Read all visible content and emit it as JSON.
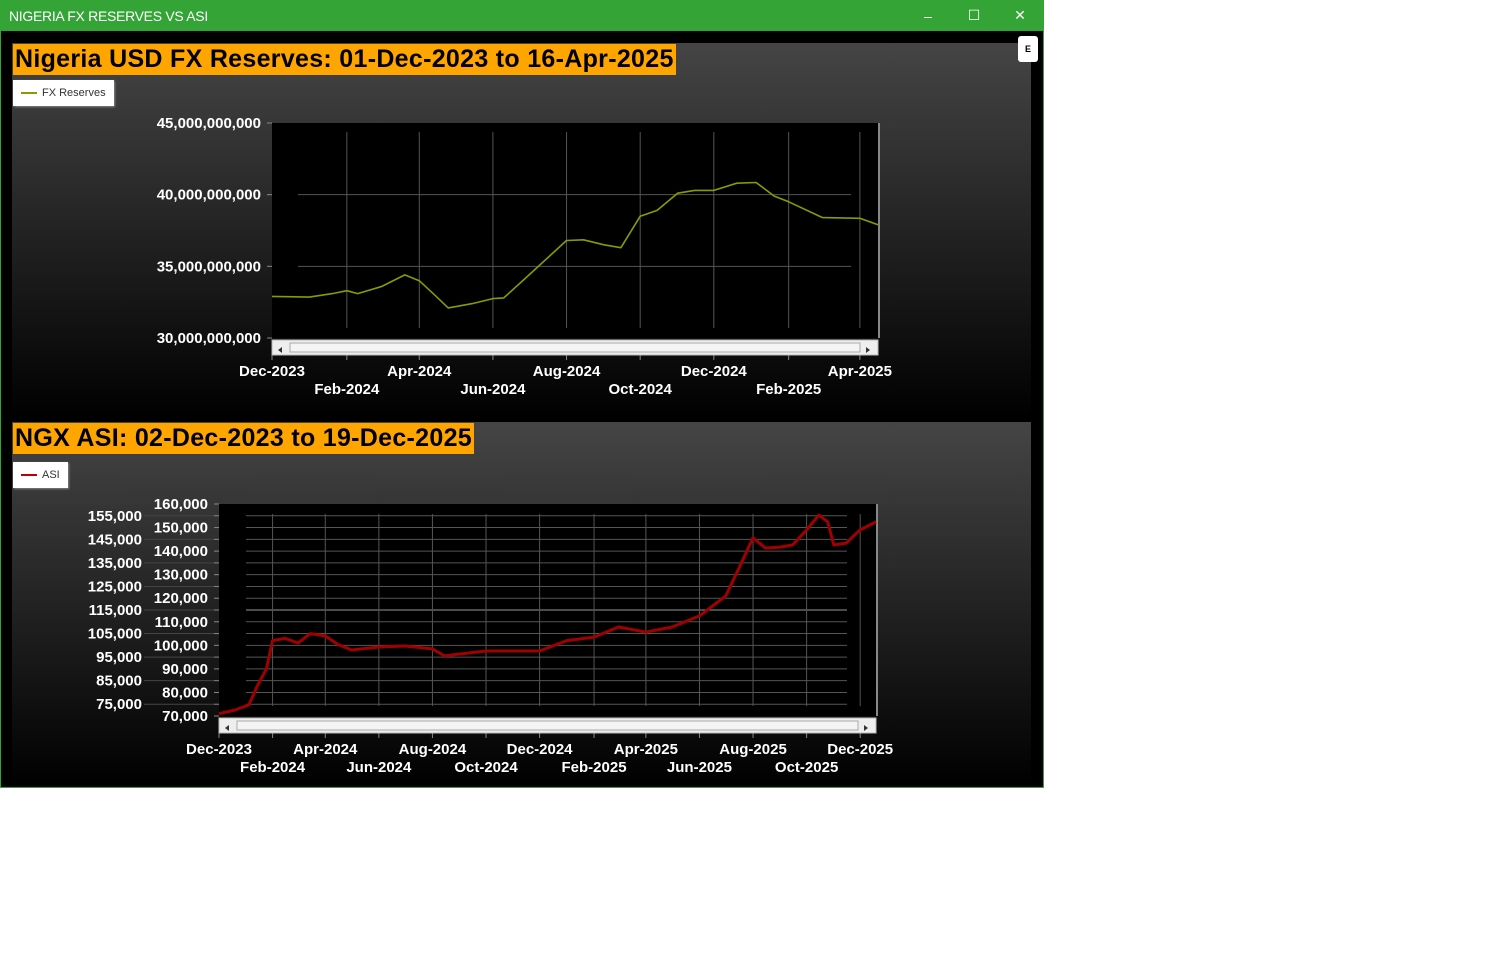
{
  "window": {
    "title": "NIGERIA FX RESERVES VS ASI",
    "minimize": "–",
    "maximize": "☐",
    "close": "✕",
    "e_button": "E"
  },
  "colors": {
    "titlebar": "#33a435",
    "title_bg": "#ffa500",
    "fx_line": "#8a9a00",
    "asi_line": "#a00000"
  },
  "chart_data": [
    {
      "type": "line",
      "title": "Nigeria USD FX Reserves: 01-Dec-2023 to 16-Apr-2025",
      "legend": "FX Reserves",
      "legend_placement": "top-left",
      "grid": true,
      "xlim": [
        "2023-12-01",
        "2025-04-16"
      ],
      "ylim": [
        30000000000,
        45000000000
      ],
      "yticks": [
        {
          "v": 30000000000,
          "label": "30,000,000,000"
        },
        {
          "v": 35000000000,
          "label": "35,000,000,000"
        },
        {
          "v": 40000000000,
          "label": "40,000,000,000"
        },
        {
          "v": 45000000000,
          "label": "45,000,000,000"
        }
      ],
      "xticks": [
        {
          "d": "2023-12-01",
          "label": "Dec-2023"
        },
        {
          "d": "2024-02-01",
          "label": "Feb-2024"
        },
        {
          "d": "2024-04-01",
          "label": "Apr-2024"
        },
        {
          "d": "2024-06-01",
          "label": "Jun-2024"
        },
        {
          "d": "2024-08-01",
          "label": "Aug-2024"
        },
        {
          "d": "2024-10-01",
          "label": "Oct-2024"
        },
        {
          "d": "2024-12-01",
          "label": "Dec-2024"
        },
        {
          "d": "2025-02-01",
          "label": "Feb-2025"
        },
        {
          "d": "2025-04-01",
          "label": "Apr-2025"
        }
      ],
      "series": [
        {
          "name": "FX Reserves",
          "points": [
            [
              "2023-12-01",
              32.9
            ],
            [
              "2024-01-01",
              32.85
            ],
            [
              "2024-01-20",
              33.1
            ],
            [
              "2024-02-01",
              33.3
            ],
            [
              "2024-02-10",
              33.1
            ],
            [
              "2024-03-01",
              33.6
            ],
            [
              "2024-03-20",
              34.4
            ],
            [
              "2024-04-01",
              34.0
            ],
            [
              "2024-04-15",
              32.9
            ],
            [
              "2024-04-25",
              32.1
            ],
            [
              "2024-05-15",
              32.4
            ],
            [
              "2024-06-01",
              32.75
            ],
            [
              "2024-06-10",
              32.8
            ],
            [
              "2024-07-01",
              34.4
            ],
            [
              "2024-08-01",
              36.8
            ],
            [
              "2024-08-15",
              36.85
            ],
            [
              "2024-09-01",
              36.5
            ],
            [
              "2024-09-15",
              36.3
            ],
            [
              "2024-10-01",
              38.5
            ],
            [
              "2024-10-15",
              38.9
            ],
            [
              "2024-11-01",
              40.1
            ],
            [
              "2024-11-15",
              40.3
            ],
            [
              "2024-12-01",
              40.3
            ],
            [
              "2024-12-20",
              40.8
            ],
            [
              "2025-01-05",
              40.85
            ],
            [
              "2025-01-20",
              39.9
            ],
            [
              "2025-02-01",
              39.5
            ],
            [
              "2025-03-01",
              38.4
            ],
            [
              "2025-04-01",
              38.35
            ],
            [
              "2025-04-16",
              37.9
            ]
          ],
          "unit": "billion USD"
        }
      ]
    },
    {
      "type": "line",
      "title": "NGX ASI: 02-Dec-2023 to 19-Dec-2025",
      "legend": "ASI",
      "legend_placement": "top-left",
      "grid": true,
      "xlim": [
        "2023-12-02",
        "2025-12-19"
      ],
      "ylim": [
        70000,
        160000
      ],
      "yticks": [
        {
          "v": 70000,
          "label": "70,000"
        },
        {
          "v": 75000,
          "label": "75,000"
        },
        {
          "v": 80000,
          "label": "80,000"
        },
        {
          "v": 85000,
          "label": "85,000"
        },
        {
          "v": 90000,
          "label": "90,000"
        },
        {
          "v": 95000,
          "label": "95,000"
        },
        {
          "v": 100000,
          "label": "100,000"
        },
        {
          "v": 105000,
          "label": "105,000"
        },
        {
          "v": 110000,
          "label": "110,000"
        },
        {
          "v": 115000,
          "label": "115,000"
        },
        {
          "v": 120000,
          "label": "120,000"
        },
        {
          "v": 125000,
          "label": "125,000"
        },
        {
          "v": 130000,
          "label": "130,000"
        },
        {
          "v": 135000,
          "label": "135,000"
        },
        {
          "v": 140000,
          "label": "140,000"
        },
        {
          "v": 145000,
          "label": "145,000"
        },
        {
          "v": 150000,
          "label": "150,000"
        },
        {
          "v": 155000,
          "label": "155,000"
        },
        {
          "v": 160000,
          "label": "160,000"
        }
      ],
      "xticks": [
        {
          "d": "2023-12-02",
          "label": "Dec-2023"
        },
        {
          "d": "2024-02-01",
          "label": "Feb-2024"
        },
        {
          "d": "2024-04-01",
          "label": "Apr-2024"
        },
        {
          "d": "2024-06-01",
          "label": "Jun-2024"
        },
        {
          "d": "2024-08-01",
          "label": "Aug-2024"
        },
        {
          "d": "2024-10-01",
          "label": "Oct-2024"
        },
        {
          "d": "2024-12-01",
          "label": "Dec-2024"
        },
        {
          "d": "2025-02-01",
          "label": "Feb-2025"
        },
        {
          "d": "2025-04-01",
          "label": "Apr-2025"
        },
        {
          "d": "2025-06-01",
          "label": "Jun-2025"
        },
        {
          "d": "2025-08-01",
          "label": "Aug-2025"
        },
        {
          "d": "2025-10-01",
          "label": "Oct-2025"
        },
        {
          "d": "2025-12-01",
          "label": "Dec-2025"
        }
      ],
      "series": [
        {
          "name": "ASI",
          "points": [
            [
              "2023-12-02",
              71000
            ],
            [
              "2023-12-20",
              72500
            ],
            [
              "2024-01-05",
              74700
            ],
            [
              "2024-01-15",
              83000
            ],
            [
              "2024-01-25",
              90000
            ],
            [
              "2024-02-01",
              102000
            ],
            [
              "2024-02-15",
              103000
            ],
            [
              "2024-03-01",
              101000
            ],
            [
              "2024-03-15",
              105000
            ],
            [
              "2024-04-01",
              104000
            ],
            [
              "2024-04-15",
              100500
            ],
            [
              "2024-05-01",
              98000
            ],
            [
              "2024-06-01",
              99300
            ],
            [
              "2024-07-01",
              99700
            ],
            [
              "2024-08-01",
              98500
            ],
            [
              "2024-08-15",
              95500
            ],
            [
              "2024-09-01",
              96300
            ],
            [
              "2024-10-01",
              97600
            ],
            [
              "2024-11-01",
              97600
            ],
            [
              "2024-12-01",
              97600
            ],
            [
              "2025-01-01",
              102000
            ],
            [
              "2025-02-01",
              103500
            ],
            [
              "2025-03-01",
              107800
            ],
            [
              "2025-04-01",
              105600
            ],
            [
              "2025-05-01",
              107800
            ],
            [
              "2025-06-01",
              112500
            ],
            [
              "2025-07-01",
              121000
            ],
            [
              "2025-07-15",
              132000
            ],
            [
              "2025-08-01",
              145600
            ],
            [
              "2025-08-15",
              141300
            ],
            [
              "2025-09-01",
              141700
            ],
            [
              "2025-09-15",
              142600
            ],
            [
              "2025-10-01",
              149000
            ],
            [
              "2025-10-15",
              155300
            ],
            [
              "2025-10-25",
              152400
            ],
            [
              "2025-11-01",
              142600
            ],
            [
              "2025-11-15",
              143400
            ],
            [
              "2025-12-01",
              149000
            ],
            [
              "2025-12-19",
              152400
            ]
          ]
        }
      ]
    }
  ]
}
